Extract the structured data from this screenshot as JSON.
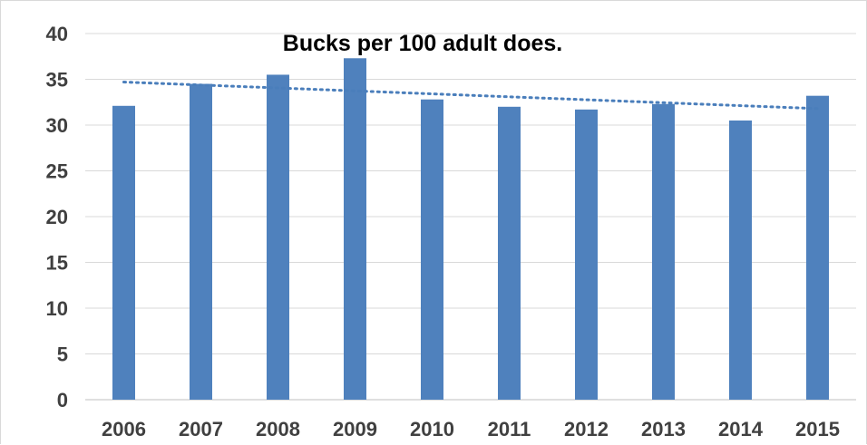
{
  "chart_data": {
    "type": "bar",
    "title": "Bucks per 100 adult does.",
    "xlabel": "",
    "ylabel": "",
    "categories": [
      "2006",
      "2007",
      "2008",
      "2009",
      "2010",
      "2011",
      "2012",
      "2013",
      "2014",
      "2015"
    ],
    "values": [
      32.1,
      34.5,
      35.5,
      37.3,
      32.8,
      32.0,
      31.7,
      32.3,
      30.5,
      33.2
    ],
    "ylim": [
      0,
      40
    ],
    "yticks": [
      "0",
      "5",
      "10",
      "15",
      "20",
      "25",
      "30",
      "35",
      "40"
    ],
    "grid": true,
    "legend": "none",
    "trendline": {
      "style": "dotted linear",
      "start": 34.7,
      "end": 31.8
    },
    "bar_color": "#4f81bd",
    "trend_color": "#4a7ebb"
  }
}
